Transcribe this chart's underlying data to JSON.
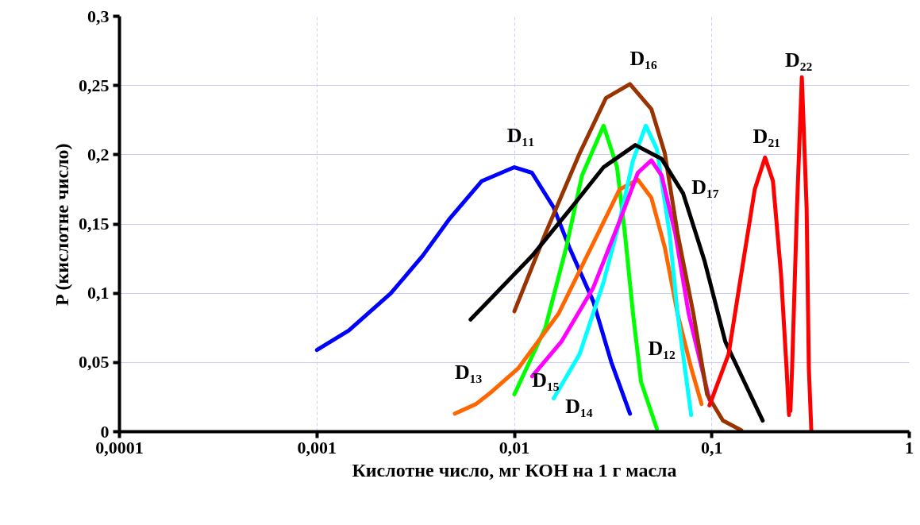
{
  "chart_data": {
    "type": "line",
    "xlabel": "Кислотне число, мг КОН на 1 г масла",
    "ylabel": "P (кислотне число)",
    "log": "x",
    "grid": true,
    "xlim": [
      0.0001,
      1
    ],
    "ylim": [
      0,
      0.3
    ],
    "xticks": [
      {
        "value": 0.0001,
        "label": "0,0001"
      },
      {
        "value": 0.001,
        "label": "0,001"
      },
      {
        "value": 0.01,
        "label": "0,01"
      },
      {
        "value": 0.1,
        "label": "0,1"
      },
      1
    ],
    "yticks": [
      0,
      {
        "value": 0.05,
        "label": "0,05"
      },
      {
        "value": 0.1,
        "label": "0,1"
      },
      {
        "value": 0.15,
        "label": "0,15"
      },
      {
        "value": 0.2,
        "label": "0,2"
      },
      {
        "value": 0.25,
        "label": "0,25"
      },
      {
        "value": 0.3,
        "label": "0,3"
      }
    ],
    "series": [
      {
        "name": "D₁₁",
        "color": "#0000ff",
        "x": [
          0.001,
          0.00145,
          0.00237,
          0.00343,
          0.00471,
          0.00684,
          0.01,
          0.01227,
          0.0158,
          0.019,
          0.0251,
          0.031,
          0.0385
        ],
        "values": [
          0.059,
          0.073,
          0.1,
          0.127,
          0.154,
          0.181,
          0.191,
          0.187,
          0.162,
          0.133,
          0.094,
          0.05,
          0.013
        ]
      },
      {
        "name": "D₁₂",
        "color": "#00ff00",
        "x": [
          0.01,
          0.01435,
          0.0183,
          0.022,
          0.0283,
          0.0331,
          0.0363,
          0.0399,
          0.0438,
          0.0527
        ],
        "values": [
          0.027,
          0.075,
          0.133,
          0.185,
          0.221,
          0.191,
          0.143,
          0.085,
          0.036,
          0.002
        ]
      },
      {
        "name": "D₁₃",
        "color": "#ff6600",
        "x": [
          0.005,
          0.0064,
          0.0077,
          0.0105,
          0.0167,
          0.0265,
          0.0341,
          0.0422,
          0.0494,
          0.0578,
          0.0671,
          0.0786,
          0.0887
        ],
        "values": [
          0.013,
          0.02,
          0.029,
          0.046,
          0.085,
          0.143,
          0.175,
          0.182,
          0.169,
          0.133,
          0.085,
          0.046,
          0.02
        ]
      },
      {
        "name": "D₁₄",
        "color": "#00ffff",
        "x": [
          0.0158,
          0.0214,
          0.0283,
          0.0341,
          0.0399,
          0.0463,
          0.0527,
          0.0611,
          0.0671,
          0.0786
        ],
        "values": [
          0.024,
          0.056,
          0.108,
          0.152,
          0.196,
          0.221,
          0.204,
          0.143,
          0.085,
          0.012
        ]
      },
      {
        "name": "D₁₅",
        "color": "#ff00ff",
        "x": [
          0.0123,
          0.0173,
          0.0251,
          0.0341,
          0.0422,
          0.0494,
          0.0557,
          0.0653,
          0.0764,
          0.0973
        ],
        "values": [
          0.04,
          0.065,
          0.104,
          0.152,
          0.187,
          0.196,
          0.185,
          0.143,
          0.085,
          0.023
        ]
      },
      {
        "name": "D₁₆",
        "color": "#993300",
        "x": [
          0.01,
          0.01435,
          0.0214,
          0.0291,
          0.0385,
          0.0494,
          0.0578,
          0.0671,
          0.0807,
          0.0946,
          0.1138,
          0.141
        ],
        "values": [
          0.087,
          0.143,
          0.201,
          0.241,
          0.251,
          0.233,
          0.201,
          0.143,
          0.085,
          0.027,
          0.008,
          0.001
        ]
      },
      {
        "name": "D₁₇",
        "color": "#000000",
        "x": [
          0.006,
          0.0077,
          0.0123,
          0.0195,
          0.0283,
          0.041,
          0.0557,
          0.0716,
          0.092,
          0.117,
          0.146,
          0.181
        ],
        "values": [
          0.081,
          0.097,
          0.127,
          0.162,
          0.191,
          0.207,
          0.197,
          0.172,
          0.123,
          0.065,
          0.036,
          0.008
        ]
      },
      {
        "name": "D₂₁",
        "color": "#ff0000",
        "x": [
          0.0973,
          0.1216,
          0.141,
          0.165,
          0.186,
          0.204,
          0.224,
          0.239,
          0.246
        ],
        "values": [
          0.019,
          0.056,
          0.114,
          0.175,
          0.198,
          0.181,
          0.114,
          0.046,
          0.012
        ]
      },
      {
        "name": "D₂₂",
        "color": "#ff0000",
        "x": [
          0.25,
          0.255,
          0.27,
          0.2857,
          0.302,
          0.31,
          0.319
        ],
        "values": [
          0.015,
          0.046,
          0.162,
          0.256,
          0.162,
          0.046,
          0.001
        ]
      }
    ]
  }
}
